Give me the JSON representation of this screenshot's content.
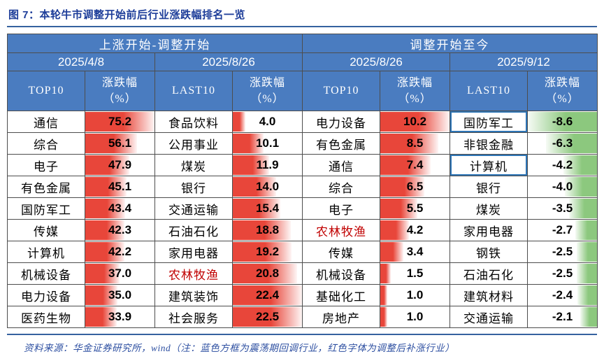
{
  "title": "图 7：本轮牛市调整开始前后行业涨跌幅排名一览",
  "footer": {
    "source": "资料来源：华金证券研究所，wind",
    "note": "（注：蓝色方框为震荡期回调行业，红色字体为调整后补涨行业）"
  },
  "colors": {
    "header_blue": "#4a7cc0",
    "red_bar": "#e8463a",
    "green_bar": "#8cc87e",
    "red_text": "#c00000",
    "blue_box_border": "#2e75b6",
    "title_blue": "#1d3d99",
    "rule_blue": "#35629f",
    "footer_blue": "#2d4fa1",
    "border": "#4d4d4d"
  },
  "table": {
    "groups": [
      {
        "label": "上涨开始-调整开始",
        "dates": [
          "2025/4/8",
          "2025/8/26"
        ]
      },
      {
        "label": "调整开始至今",
        "dates": [
          "2025/8/26",
          "2025/9/12"
        ]
      }
    ],
    "col_headers": [
      "TOP10",
      "涨跌幅\n（%）",
      "LAST10",
      "涨跌幅\n（%）",
      "TOP10",
      "涨跌幅\n（%）",
      "LAST10",
      "涨跌幅\n（%）"
    ],
    "columns": [
      {
        "bar": "red",
        "bar_max": 75.2,
        "rows": [
          {
            "name": "通信",
            "value": "75.2"
          },
          {
            "name": "综合",
            "value": "56.1"
          },
          {
            "name": "电子",
            "value": "47.9"
          },
          {
            "name": "有色金属",
            "value": "45.1"
          },
          {
            "name": "国防军工",
            "value": "43.4"
          },
          {
            "name": "传媒",
            "value": "42.3"
          },
          {
            "name": "计算机",
            "value": "42.2"
          },
          {
            "name": "机械设备",
            "value": "37.0"
          },
          {
            "name": "电力设备",
            "value": "35.0"
          },
          {
            "name": "医药生物",
            "value": "33.9"
          }
        ]
      },
      {
        "bar": "red",
        "bar_max": 22.5,
        "rows": [
          {
            "name": "食品饮料",
            "value": "4.0"
          },
          {
            "name": "公用事业",
            "value": "10.1"
          },
          {
            "name": "煤炭",
            "value": "11.9"
          },
          {
            "name": "银行",
            "value": "14.0"
          },
          {
            "name": "交通运输",
            "value": "15.4"
          },
          {
            "name": "石油石化",
            "value": "18.8"
          },
          {
            "name": "家用电器",
            "value": "19.2"
          },
          {
            "name": "农林牧渔",
            "value": "20.8",
            "red_text": true
          },
          {
            "name": "建筑装饰",
            "value": "22.4"
          },
          {
            "name": "社会服务",
            "value": "22.5"
          }
        ]
      },
      {
        "bar": "red",
        "bar_max": 10.2,
        "rows": [
          {
            "name": "电力设备",
            "value": "10.2"
          },
          {
            "name": "有色金属",
            "value": "8.5"
          },
          {
            "name": "通信",
            "value": "7.4"
          },
          {
            "name": "综合",
            "value": "6.5"
          },
          {
            "name": "电子",
            "value": "5.5"
          },
          {
            "name": "农林牧渔",
            "value": "4.2",
            "red_text": true
          },
          {
            "name": "传媒",
            "value": "3.4"
          },
          {
            "name": "机械设备",
            "value": "1.5"
          },
          {
            "name": "基础化工",
            "value": "1.0"
          },
          {
            "name": "房地产",
            "value": "1.0"
          }
        ]
      },
      {
        "bar": "green",
        "bar_max": 8.6,
        "rows": [
          {
            "name": "国防军工",
            "value": "-8.6",
            "blue_box": true
          },
          {
            "name": "非银金融",
            "value": "-6.3"
          },
          {
            "name": "计算机",
            "value": "-4.2",
            "blue_box": true
          },
          {
            "name": "银行",
            "value": "-4.0"
          },
          {
            "name": "煤炭",
            "value": "-3.5"
          },
          {
            "name": "家用电器",
            "value": "-2.7"
          },
          {
            "name": "钢铁",
            "value": "-2.5"
          },
          {
            "name": "石油石化",
            "value": "-2.5"
          },
          {
            "name": "建筑材料",
            "value": "-2.4"
          },
          {
            "name": "交通运输",
            "value": "-2.1"
          }
        ]
      }
    ]
  },
  "chart_data": {
    "type": "table",
    "title": "图 7：本轮牛市调整开始前后行业涨跌幅排名一览",
    "sections": [
      {
        "period": "上涨开始-调整开始",
        "list": "TOP10",
        "date": "2025/4/8",
        "industries": [
          "通信",
          "综合",
          "电子",
          "有色金属",
          "国防军工",
          "传媒",
          "计算机",
          "机械设备",
          "电力设备",
          "医药生物"
        ],
        "pct_change": [
          75.2,
          56.1,
          47.9,
          45.1,
          43.4,
          42.3,
          42.2,
          37.0,
          35.0,
          33.9
        ]
      },
      {
        "period": "上涨开始-调整开始",
        "list": "LAST10",
        "date": "2025/8/26",
        "industries": [
          "食品饮料",
          "公用事业",
          "煤炭",
          "银行",
          "交通运输",
          "石油石化",
          "家用电器",
          "农林牧渔",
          "建筑装饰",
          "社会服务"
        ],
        "pct_change": [
          4.0,
          10.1,
          11.9,
          14.0,
          15.4,
          18.8,
          19.2,
          20.8,
          22.4,
          22.5
        ]
      },
      {
        "period": "调整开始至今",
        "list": "TOP10",
        "date": "2025/8/26",
        "industries": [
          "电力设备",
          "有色金属",
          "通信",
          "综合",
          "电子",
          "农林牧渔",
          "传媒",
          "机械设备",
          "基础化工",
          "房地产"
        ],
        "pct_change": [
          10.2,
          8.5,
          7.4,
          6.5,
          5.5,
          4.2,
          3.4,
          1.5,
          1.0,
          1.0
        ]
      },
      {
        "period": "调整开始至今",
        "list": "LAST10",
        "date": "2025/9/12",
        "industries": [
          "国防军工",
          "非银金融",
          "计算机",
          "银行",
          "煤炭",
          "家用电器",
          "钢铁",
          "石油石化",
          "建筑材料",
          "交通运输"
        ],
        "pct_change": [
          -8.6,
          -6.3,
          -4.2,
          -4.0,
          -3.5,
          -2.7,
          -2.5,
          -2.5,
          -2.4,
          -2.1
        ]
      }
    ],
    "annotations": [
      "红色字体为调整后补涨行业：农林牧渔",
      "蓝色方框为震荡期回调行业：国防军工、计算机"
    ],
    "layout": {
      "bar_style": "gradient data bars",
      "positive_color": "#e8463a",
      "negative_color": "#8cc87e"
    }
  }
}
